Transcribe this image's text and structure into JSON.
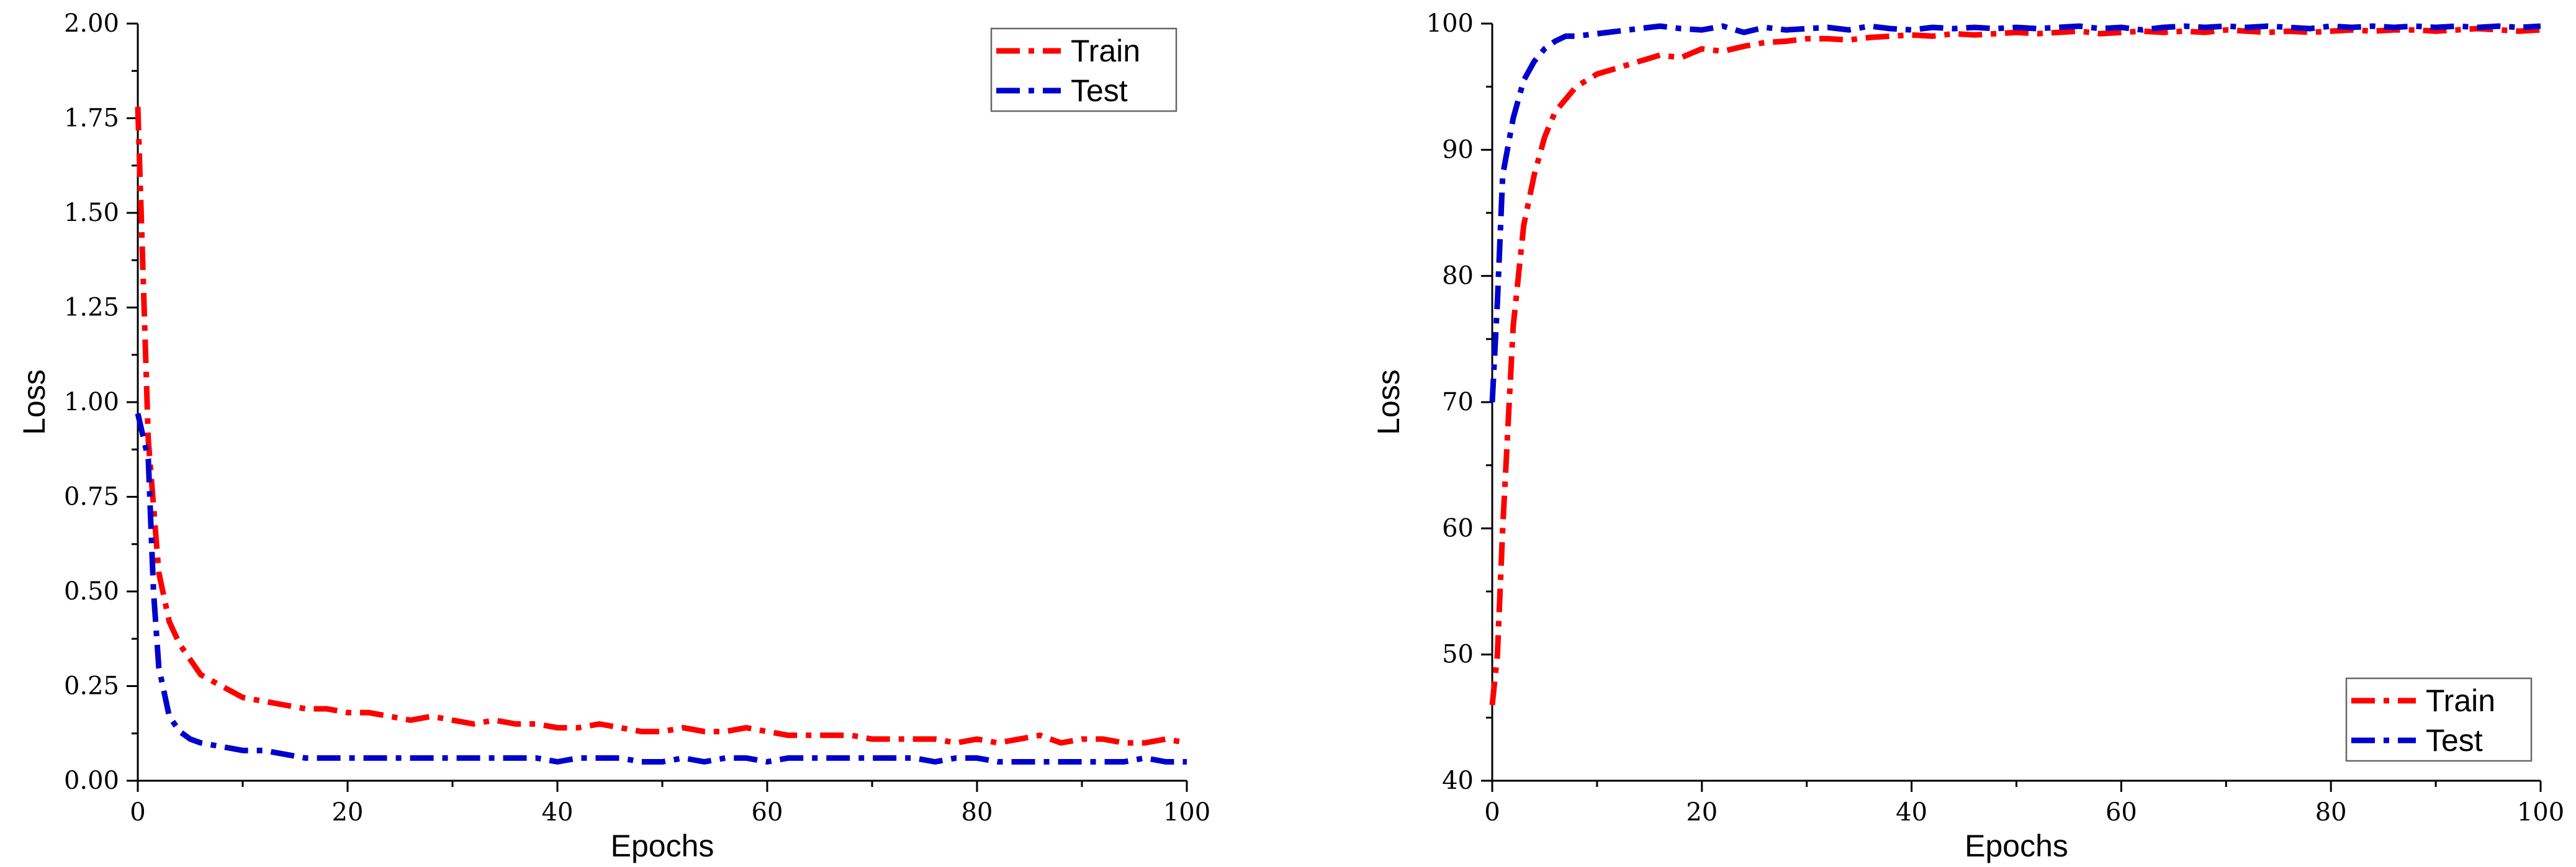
{
  "chart_data": [
    {
      "type": "line",
      "title": "",
      "xlabel": "Epochs",
      "ylabel": "Loss",
      "xlim": [
        0,
        100
      ],
      "ylim": [
        0,
        2
      ],
      "xticks": [
        "0",
        "20",
        "40",
        "60",
        "80",
        "100"
      ],
      "yticks": [
        "0.00",
        "0.25",
        "0.50",
        "0.75",
        "1.00",
        "1.25",
        "1.50",
        "1.75",
        "2.00"
      ],
      "legend_position": "top-right",
      "grid": false,
      "series": [
        {
          "name": "Train",
          "color": "#ff0000",
          "x": [
            0,
            1,
            2,
            3,
            4,
            5,
            6,
            8,
            10,
            12,
            14,
            16,
            18,
            20,
            22,
            24,
            26,
            28,
            30,
            32,
            34,
            36,
            38,
            40,
            42,
            44,
            46,
            48,
            50,
            52,
            54,
            56,
            58,
            60,
            62,
            64,
            66,
            68,
            70,
            72,
            74,
            76,
            78,
            80,
            82,
            84,
            86,
            88,
            90,
            92,
            94,
            96,
            98,
            100
          ],
          "y": [
            1.78,
            0.9,
            0.55,
            0.42,
            0.36,
            0.32,
            0.28,
            0.25,
            0.22,
            0.21,
            0.2,
            0.19,
            0.19,
            0.18,
            0.18,
            0.17,
            0.16,
            0.17,
            0.16,
            0.15,
            0.16,
            0.15,
            0.15,
            0.14,
            0.14,
            0.15,
            0.14,
            0.13,
            0.13,
            0.14,
            0.13,
            0.13,
            0.14,
            0.13,
            0.12,
            0.12,
            0.12,
            0.12,
            0.11,
            0.11,
            0.11,
            0.11,
            0.1,
            0.11,
            0.1,
            0.11,
            0.12,
            0.1,
            0.11,
            0.11,
            0.1,
            0.1,
            0.11,
            0.1
          ]
        },
        {
          "name": "Test",
          "color": "#0000cc",
          "x": [
            0,
            1,
            1.5,
            2,
            3,
            4,
            5,
            6,
            8,
            10,
            12,
            14,
            16,
            18,
            20,
            22,
            24,
            26,
            28,
            30,
            32,
            34,
            36,
            38,
            40,
            42,
            44,
            46,
            48,
            50,
            52,
            54,
            56,
            58,
            60,
            62,
            64,
            66,
            68,
            70,
            72,
            74,
            76,
            78,
            80,
            82,
            84,
            86,
            88,
            90,
            92,
            94,
            96,
            98,
            100
          ],
          "y": [
            0.97,
            0.85,
            0.5,
            0.3,
            0.17,
            0.13,
            0.11,
            0.1,
            0.09,
            0.08,
            0.08,
            0.07,
            0.06,
            0.06,
            0.06,
            0.06,
            0.06,
            0.06,
            0.06,
            0.06,
            0.06,
            0.06,
            0.06,
            0.06,
            0.05,
            0.06,
            0.06,
            0.06,
            0.05,
            0.05,
            0.06,
            0.05,
            0.06,
            0.06,
            0.05,
            0.06,
            0.06,
            0.06,
            0.06,
            0.06,
            0.06,
            0.06,
            0.05,
            0.06,
            0.06,
            0.05,
            0.05,
            0.05,
            0.05,
            0.05,
            0.05,
            0.05,
            0.06,
            0.05,
            0.05
          ]
        }
      ]
    },
    {
      "type": "line",
      "title": "",
      "xlabel": "Epochs",
      "ylabel": "Loss",
      "xlim": [
        0,
        100
      ],
      "ylim": [
        40,
        100
      ],
      "xticks": [
        "0",
        "20",
        "40",
        "60",
        "80",
        "100"
      ],
      "yticks": [
        "40",
        "50",
        "60",
        "70",
        "80",
        "90",
        "100"
      ],
      "legend_position": "bottom-right",
      "grid": false,
      "series": [
        {
          "name": "Train",
          "color": "#ff0000",
          "x": [
            0,
            0.5,
            1,
            1.5,
            2,
            3,
            4,
            5,
            6,
            7,
            8,
            10,
            12,
            14,
            16,
            18,
            20,
            22,
            24,
            26,
            28,
            30,
            32,
            34,
            36,
            38,
            40,
            42,
            44,
            46,
            48,
            50,
            52,
            54,
            56,
            58,
            60,
            62,
            64,
            66,
            68,
            70,
            72,
            74,
            76,
            78,
            80,
            82,
            84,
            86,
            88,
            90,
            92,
            94,
            96,
            98,
            100
          ],
          "y": [
            46,
            50,
            60,
            68,
            76,
            84,
            88,
            91,
            93,
            94,
            95,
            96,
            96.5,
            97,
            97.5,
            97.3,
            98,
            97.8,
            98.2,
            98.5,
            98.6,
            98.8,
            98.8,
            98.7,
            98.9,
            99,
            99.1,
            99,
            99.2,
            99.1,
            99.2,
            99.3,
            99.2,
            99.3,
            99.4,
            99.2,
            99.3,
            99.4,
            99.3,
            99.4,
            99.3,
            99.5,
            99.4,
            99.3,
            99.4,
            99.3,
            99.4,
            99.5,
            99.4,
            99.5,
            99.5,
            99.4,
            99.5,
            99.6,
            99.5,
            99.4,
            99.5
          ]
        },
        {
          "name": "Test",
          "color": "#0000cc",
          "x": [
            0,
            0.5,
            1,
            2,
            3,
            4,
            5,
            6,
            7,
            8,
            10,
            12,
            14,
            16,
            18,
            20,
            22,
            24,
            26,
            28,
            30,
            32,
            34,
            36,
            38,
            40,
            42,
            44,
            46,
            48,
            50,
            52,
            54,
            56,
            58,
            60,
            62,
            64,
            66,
            68,
            70,
            72,
            74,
            76,
            78,
            80,
            82,
            84,
            86,
            88,
            90,
            92,
            94,
            96,
            98,
            100
          ],
          "y": [
            70,
            78,
            88,
            92.5,
            95.5,
            97,
            98,
            98.6,
            99,
            99,
            99.2,
            99.4,
            99.6,
            99.8,
            99.6,
            99.5,
            99.8,
            99.3,
            99.7,
            99.5,
            99.6,
            99.7,
            99.5,
            99.8,
            99.6,
            99.5,
            99.7,
            99.6,
            99.7,
            99.6,
            99.7,
            99.6,
            99.7,
            99.8,
            99.6,
            99.7,
            99.5,
            99.7,
            99.8,
            99.7,
            99.8,
            99.7,
            99.8,
            99.7,
            99.6,
            99.8,
            99.7,
            99.8,
            99.7,
            99.8,
            99.7,
            99.8,
            99.7,
            99.8,
            99.7,
            99.8
          ]
        }
      ]
    }
  ]
}
